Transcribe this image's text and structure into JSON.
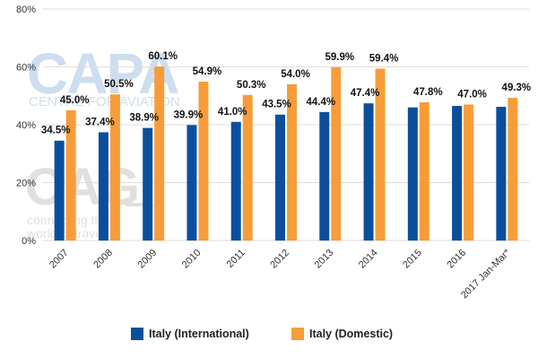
{
  "chart_data": {
    "type": "bar",
    "title": "",
    "xlabel": "",
    "ylabel": "",
    "ylim": [
      0,
      80
    ],
    "y_ticks": [
      "0%",
      "20%",
      "40%",
      "60%",
      "80%"
    ],
    "y_tick_values": [
      0,
      20,
      40,
      60,
      80
    ],
    "grid": true,
    "legend_position": "bottom",
    "categories": [
      "2007",
      "2008",
      "2009",
      "2010",
      "2011",
      "2012",
      "2013",
      "2014",
      "2015",
      "2016",
      "2017 Jan-Mar*"
    ],
    "series": [
      {
        "name": "Italy (International)",
        "color": "#0b4f9c",
        "values": [
          34.5,
          37.4,
          38.9,
          39.9,
          41.0,
          43.5,
          44.4,
          47.4,
          46.0,
          46.5,
          46.2
        ],
        "labels": [
          "34.5%",
          "37.4%",
          "38.9%",
          "39.9%",
          "41.0%",
          "43.5%",
          "44.4%",
          "47.4%",
          null,
          null,
          null
        ]
      },
      {
        "name": "Italy (Domestic)",
        "color": "#f89c3a",
        "values": [
          45.0,
          50.5,
          60.1,
          54.9,
          50.3,
          54.0,
          59.9,
          59.4,
          47.8,
          47.0,
          49.3
        ],
        "labels": [
          "45.0%",
          "50.5%",
          "60.1%",
          "54.9%",
          "50.3%",
          "54.0%",
          "59.9%",
          "59.4%",
          "47.8%",
          "47.0%",
          "49.3%"
        ]
      }
    ]
  },
  "legend": {
    "international": "Italy (International)",
    "domestic": "Italy (Domestic)"
  },
  "watermark": {
    "capa_logo": "CAPA",
    "capa_sub": "CENTRE FOR AVIATION",
    "oag_logo": "OAG",
    "oag_sub1": "connecting the",
    "oag_sub2": "world of travel"
  }
}
